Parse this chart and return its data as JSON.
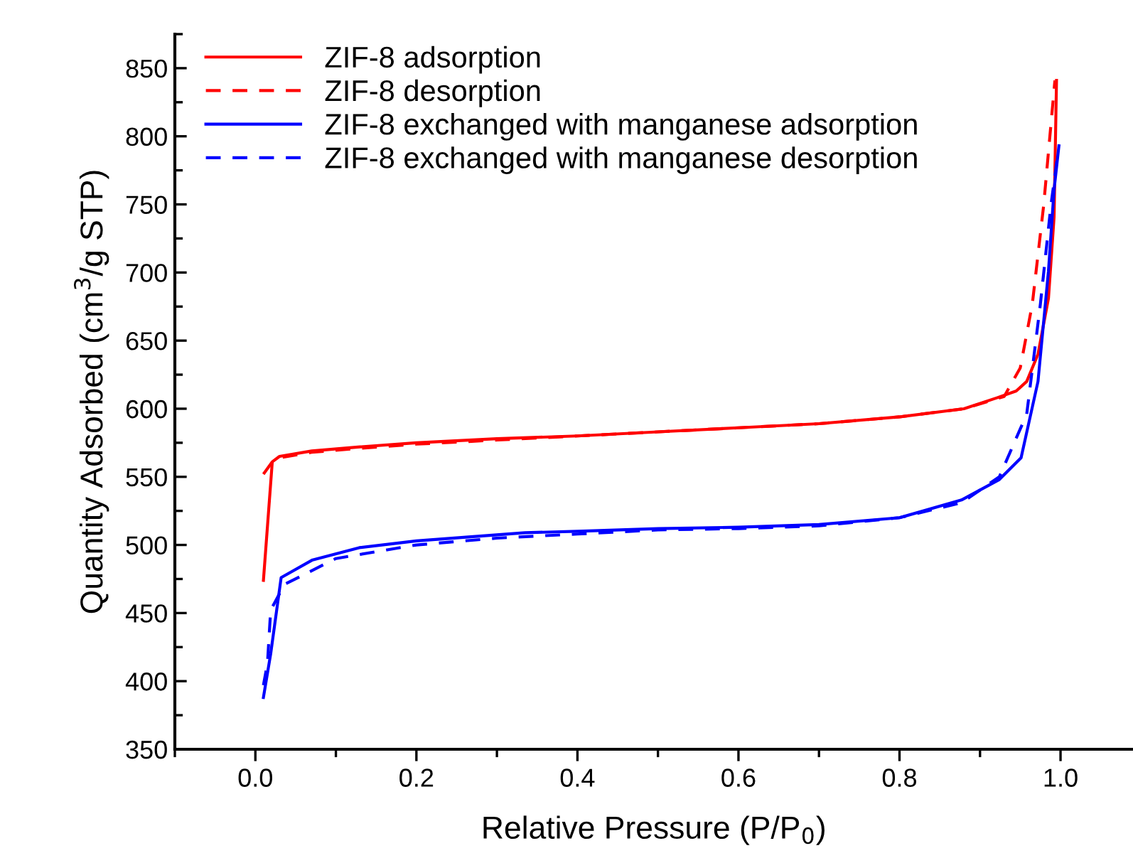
{
  "chart_data": {
    "type": "line",
    "xlabel": "Relative Pressure (P/P$_{0}$)",
    "ylabel": "Quantity Adsorbed (cm$^{3}$/g STP)",
    "xlim": [
      -0.1,
      1.09
    ],
    "xticks": [
      {
        "value": 0.0,
        "label": "0.0"
      },
      0.2,
      0.4,
      0.6,
      0.8,
      {
        "value": 1.0,
        "label": "1.0"
      }
    ],
    "ylim": [
      350,
      875
    ],
    "yticks": [
      350,
      400,
      450,
      500,
      550,
      600,
      650,
      700,
      750,
      800,
      850
    ],
    "grid": false,
    "legend": "top left",
    "series": [
      {
        "name": "ZIF-8 adsorption",
        "color": "#ff0000",
        "line_style": "solid",
        "x": [
          0.01,
          0.021,
          0.03,
          0.07,
          0.13,
          0.2,
          0.3,
          0.4,
          0.5,
          0.6,
          0.7,
          0.8,
          0.88,
          0.921,
          0.945,
          0.958,
          0.972,
          0.985,
          0.992,
          0.995
        ],
        "values": [
          474,
          561,
          565,
          569,
          572,
          575,
          578,
          580,
          583,
          586,
          589,
          594,
          600,
          608,
          613,
          620,
          640,
          681,
          741,
          841
        ]
      },
      {
        "name": "ZIF-8 desorption",
        "color": "#ff0000",
        "line_style": "dashed",
        "x": [
          0.01,
          0.021,
          0.03,
          0.07,
          0.13,
          0.2,
          0.3,
          0.4,
          0.5,
          0.6,
          0.7,
          0.8,
          0.88,
          0.93,
          0.95,
          0.965,
          0.979,
          0.993
        ],
        "values": [
          552,
          561,
          564,
          568,
          571,
          574,
          577,
          580,
          583,
          586,
          589,
          594,
          600,
          609,
          630,
          677,
          749,
          841
        ]
      },
      {
        "name": "ZIF-8 exchanged with manganese adsorption",
        "color": "#0000ff",
        "line_style": "solid",
        "x": [
          0.01,
          0.019,
          0.032,
          0.071,
          0.129,
          0.2,
          0.335,
          0.4,
          0.5,
          0.6,
          0.7,
          0.8,
          0.877,
          0.924,
          0.951,
          0.972,
          0.985,
          0.992,
          0.998
        ],
        "values": [
          388,
          420,
          476,
          489,
          498,
          503,
          509,
          510,
          512,
          513,
          515,
          520,
          533,
          548,
          564,
          620,
          701,
          761,
          793
        ]
      },
      {
        "name": "ZIF-8 exchanged with manganese desorption",
        "color": "#0000ff",
        "line_style": "dashed",
        "x": [
          0.01,
          0.015,
          0.019,
          0.036,
          0.1,
          0.2,
          0.3,
          0.4,
          0.5,
          0.6,
          0.7,
          0.8,
          0.877,
          0.924,
          0.958,
          0.975,
          0.988,
          0.997
        ],
        "values": [
          397,
          413,
          452,
          471,
          490,
          500,
          505,
          508,
          511,
          512,
          514,
          520,
          531,
          550,
          596,
          677,
          749,
          789
        ]
      }
    ]
  }
}
